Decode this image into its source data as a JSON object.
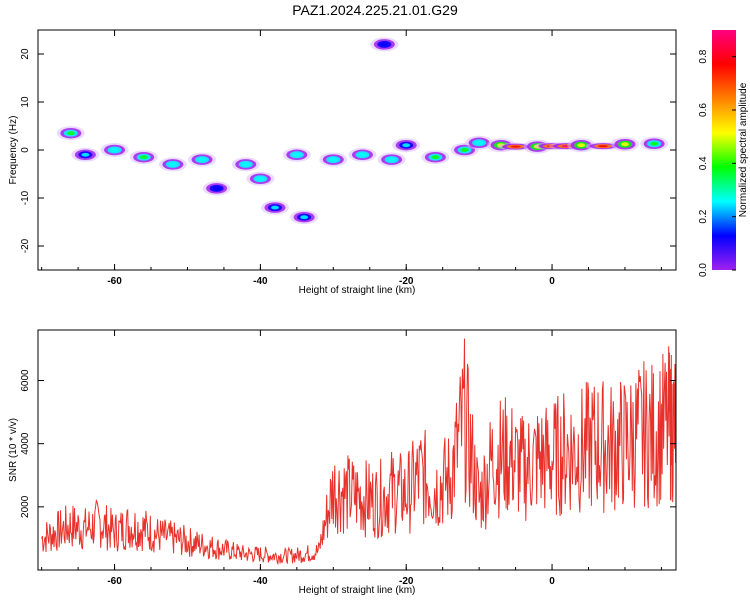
{
  "title": "PAZ1.2024.225.21.01.G29",
  "chart_data": [
    {
      "type": "heatmap",
      "xlabel": "Height of straight line (km)",
      "ylabel": "Frequency (Hz)",
      "xlim": [
        -70.5,
        17
      ],
      "ylim": [
        -25,
        25
      ],
      "xticks": [
        -60,
        -40,
        -20,
        0
      ],
      "yticks": [
        -20,
        -10,
        0,
        10,
        20
      ],
      "colorbar": {
        "label": "Normalized spectral amplitude",
        "range": [
          0,
          0.9
        ],
        "ticks": [
          0.0,
          0.2,
          0.4,
          0.6,
          0.8
        ],
        "colors": [
          "#ffffff",
          "#a020f0",
          "#0000ff",
          "#00ffff",
          "#00ff00",
          "#ffff00",
          "#ff8000",
          "#ff0000",
          "#ff0080"
        ]
      },
      "blobs": [
        {
          "x": -66,
          "y": 3.5,
          "amp": 0.35
        },
        {
          "x": -64,
          "y": -1,
          "amp": 0.2
        },
        {
          "x": -60,
          "y": 0,
          "amp": 0.3
        },
        {
          "x": -56,
          "y": -1.5,
          "amp": 0.35
        },
        {
          "x": -52,
          "y": -3,
          "amp": 0.3
        },
        {
          "x": -48,
          "y": -2,
          "amp": 0.3
        },
        {
          "x": -46,
          "y": -8,
          "amp": 0.15
        },
        {
          "x": -42,
          "y": -3,
          "amp": 0.25
        },
        {
          "x": -40,
          "y": -6,
          "amp": 0.3
        },
        {
          "x": -38,
          "y": -12,
          "amp": 0.2
        },
        {
          "x": -34,
          "y": -14,
          "amp": 0.2
        },
        {
          "x": -35,
          "y": -1,
          "amp": 0.3
        },
        {
          "x": -30,
          "y": -2,
          "amp": 0.3
        },
        {
          "x": -26,
          "y": -1,
          "amp": 0.3
        },
        {
          "x": -22,
          "y": -2,
          "amp": 0.3
        },
        {
          "x": -20,
          "y": 1,
          "amp": 0.2
        },
        {
          "x": -16,
          "y": -1.5,
          "amp": 0.4
        },
        {
          "x": -12,
          "y": 0,
          "amp": 0.35
        },
        {
          "x": -10,
          "y": 1.5,
          "amp": 0.3
        },
        {
          "x": -7,
          "y": 1,
          "amp": 0.45
        },
        {
          "x": -5,
          "y": 0.7,
          "amp": 0.75
        },
        {
          "x": -2,
          "y": 0.7,
          "amp": 0.5
        },
        {
          "x": 0,
          "y": 0.8,
          "amp": 0.8
        },
        {
          "x": 2,
          "y": 0.8,
          "amp": 0.85
        },
        {
          "x": 4,
          "y": 1,
          "amp": 0.5
        },
        {
          "x": 7,
          "y": 0.8,
          "amp": 0.8
        },
        {
          "x": 10,
          "y": 1.2,
          "amp": 0.45
        },
        {
          "x": 14,
          "y": 1.3,
          "amp": 0.4
        },
        {
          "x": -23,
          "y": 22,
          "amp": 0.1
        }
      ]
    },
    {
      "type": "line",
      "xlabel": "Height of straight line (km)",
      "ylabel": "SNR (10 * v/v)",
      "xlim": [
        -70.5,
        17
      ],
      "ylim": [
        0,
        7600
      ],
      "xticks": [
        -60,
        -40,
        -20,
        0
      ],
      "yticks": [
        2000,
        4000,
        6000
      ],
      "color": "#e8312a",
      "x": [
        -70,
        -68,
        -66,
        -64,
        -62,
        -60,
        -58,
        -56,
        -54,
        -52,
        -50,
        -48,
        -46,
        -44,
        -42,
        -40,
        -38,
        -36,
        -34,
        -32,
        -30,
        -28,
        -26,
        -24,
        -22,
        -20,
        -18,
        -16,
        -14,
        -12,
        -10,
        -8,
        -6,
        -4,
        -2,
        0,
        2,
        4,
        6,
        8,
        10,
        12,
        14,
        16,
        17
      ],
      "y": [
        1000,
        1200,
        1400,
        1300,
        1500,
        1200,
        1400,
        1300,
        1100,
        1000,
        900,
        800,
        700,
        600,
        500,
        500,
        450,
        450,
        500,
        600,
        2600,
        2400,
        2300,
        2200,
        2500,
        2400,
        3000,
        2600,
        2900,
        4800,
        2200,
        3600,
        3600,
        3200,
        3500,
        3500,
        3800,
        3800,
        4000,
        3900,
        4000,
        4300,
        4300,
        4600,
        4600
      ]
    }
  ]
}
